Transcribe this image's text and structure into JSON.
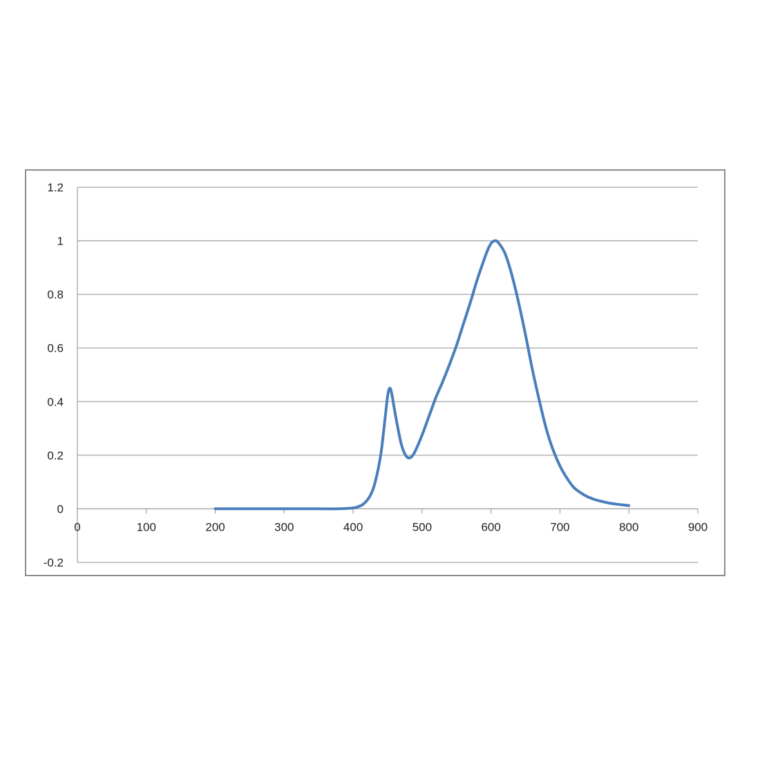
{
  "chart_data": {
    "type": "line",
    "title": "",
    "xlabel": "",
    "ylabel": "",
    "xlim": [
      0,
      900
    ],
    "ylim": [
      -0.2,
      1.2
    ],
    "x_ticks": [
      0,
      100,
      200,
      300,
      400,
      500,
      600,
      700,
      800,
      900
    ],
    "x_tick_labels": [
      "0",
      "100",
      "200",
      "300",
      "400",
      "500",
      "600",
      "700",
      "800",
      "900"
    ],
    "y_ticks": [
      -0.2,
      0,
      0.2,
      0.4,
      0.6,
      0.8,
      1,
      1.2
    ],
    "y_tick_labels": [
      "-0.2",
      "0",
      "0.2",
      "0.4",
      "0.6",
      "0.8",
      "1",
      "1.2"
    ],
    "grid": "horizontal",
    "legend": "none",
    "series": [
      {
        "color": "#4a7ebb",
        "x": [
          200,
          250,
          300,
          350,
          380,
          395,
          405,
          415,
          425,
          432,
          440,
          446,
          450,
          453,
          456,
          460,
          465,
          470,
          475,
          480,
          485,
          490,
          500,
          510,
          520,
          530,
          540,
          550,
          560,
          570,
          580,
          590,
          595,
          600,
          605,
          610,
          620,
          630,
          640,
          650,
          660,
          670,
          680,
          690,
          700,
          710,
          720,
          730,
          740,
          750,
          760,
          770,
          780,
          790,
          800
        ],
        "y": [
          0,
          0,
          0,
          0,
          0,
          0.002,
          0.006,
          0.018,
          0.05,
          0.1,
          0.2,
          0.33,
          0.42,
          0.45,
          0.43,
          0.37,
          0.3,
          0.24,
          0.205,
          0.19,
          0.195,
          0.215,
          0.275,
          0.345,
          0.415,
          0.475,
          0.54,
          0.61,
          0.69,
          0.77,
          0.855,
          0.93,
          0.965,
          0.99,
          1.0,
          0.995,
          0.955,
          0.875,
          0.77,
          0.65,
          0.52,
          0.405,
          0.3,
          0.22,
          0.16,
          0.115,
          0.08,
          0.06,
          0.045,
          0.035,
          0.028,
          0.022,
          0.018,
          0.015,
          0.012
        ]
      }
    ]
  }
}
